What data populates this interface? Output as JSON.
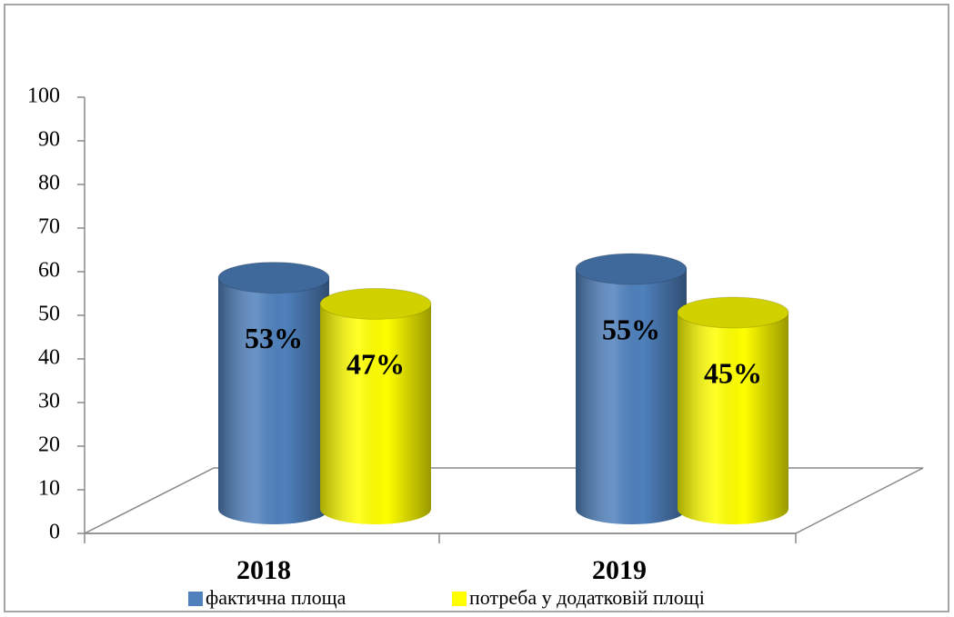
{
  "chart_data": {
    "type": "bar3d",
    "categories": [
      "2018",
      "2019"
    ],
    "series": [
      {
        "name": "фактична площа",
        "color": "#4f81bd",
        "values": [
          53,
          55
        ],
        "value_labels": [
          "53%",
          "55%"
        ]
      },
      {
        "name": "потреба у додатковій площі",
        "color": "#ffff00",
        "values": [
          47,
          45
        ],
        "value_labels": [
          "47%",
          "45%"
        ]
      }
    ],
    "ylim": [
      0,
      100
    ],
    "yticks": [
      0,
      10,
      20,
      30,
      40,
      50,
      60,
      70,
      80,
      90,
      100
    ]
  }
}
